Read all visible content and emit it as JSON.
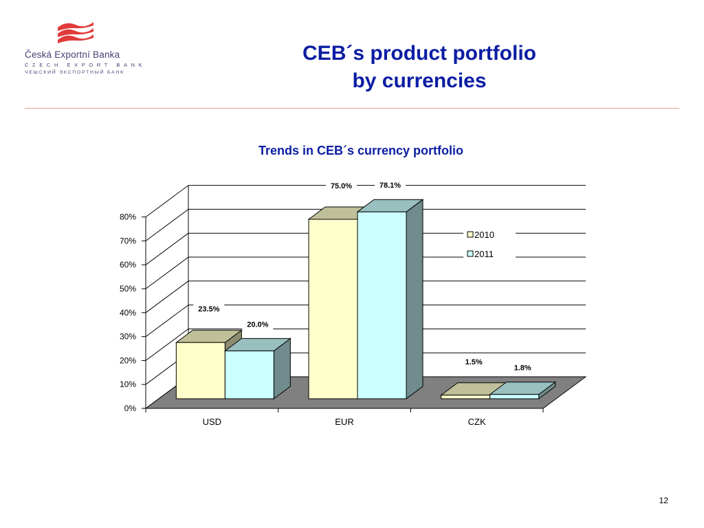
{
  "brand": {
    "name": "Česká Exportní Banka",
    "name_en": "CZECH EXPORT BANK",
    "name_ru": "ЧЕШСКИЙ ЭКСПОРТНЫЙ БАНК",
    "logo_color": "#e23b3b"
  },
  "slide": {
    "title_line1": "CEB´s product portfolio",
    "title_line2": "by currencies",
    "page_number": "12"
  },
  "colors": {
    "title": "#0b1da3",
    "series_2010": "#ffffcc",
    "series_2011": "#ccffff",
    "floor": "#808080",
    "rule": "#e3a38c"
  },
  "chart_data": {
    "type": "bar",
    "title": "Trends in CEB´s currency portfolio",
    "categories": [
      "USD",
      "EUR",
      "CZK"
    ],
    "series": [
      {
        "name": "2010",
        "values": [
          23.5,
          75.0,
          1.5
        ],
        "labels": [
          "23.5%",
          "75.0%",
          "1.5%"
        ]
      },
      {
        "name": "2011",
        "values": [
          20.0,
          78.1,
          1.8
        ],
        "labels": [
          "20.0%",
          "78.1%",
          "1.8%"
        ]
      }
    ],
    "y_ticks": [
      "0%",
      "10%",
      "20%",
      "30%",
      "40%",
      "50%",
      "60%",
      "70%",
      "80%"
    ],
    "ylim": [
      0,
      80
    ],
    "legend_position": "right",
    "grid": true,
    "three_d": true
  }
}
